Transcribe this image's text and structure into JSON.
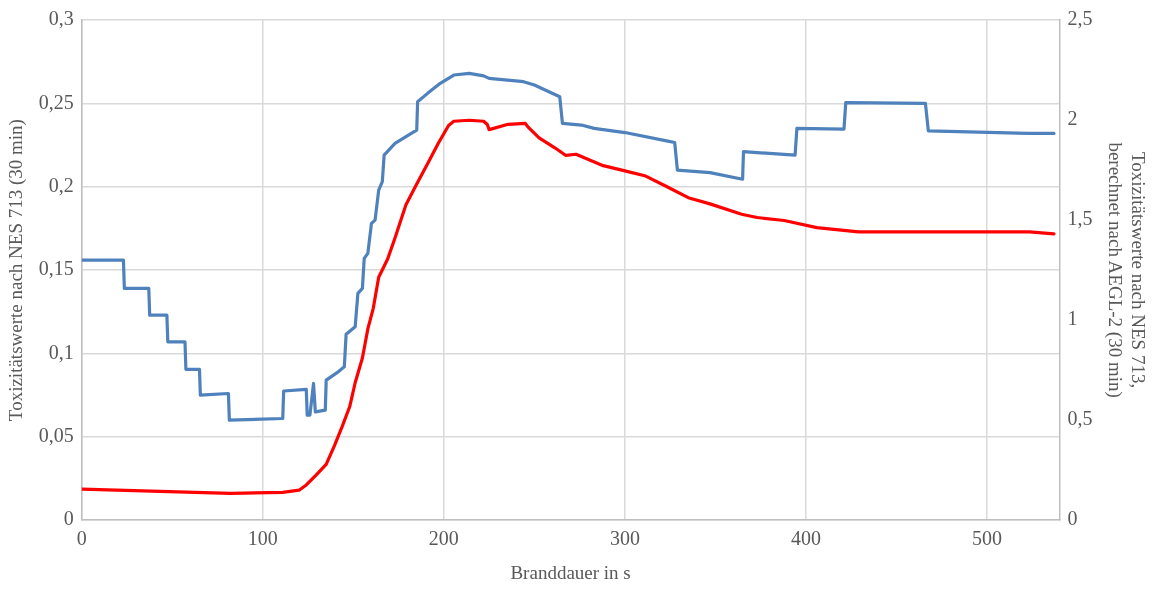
{
  "chart_data": {
    "type": "line",
    "xlabel": "Branddauer in s",
    "ylabel": "Toxizitätswerte nach NES 713 (30 min)",
    "y2label": "Toxizitätswerte nach NES 713, berechnet nach AEGL-2 (30 min)",
    "xlim": [
      0,
      540
    ],
    "xticks": [
      0,
      100,
      200,
      300,
      400,
      500
    ],
    "ylim": [
      0,
      0.3
    ],
    "yticks": [
      0,
      {
        "value": 0.05,
        "label": "0,05"
      },
      {
        "value": 0.1,
        "label": "0,1"
      },
      {
        "value": 0.15,
        "label": "0,15"
      },
      {
        "value": 0.2,
        "label": "0,2"
      },
      {
        "value": 0.25,
        "label": "0,25"
      },
      {
        "value": 0.3,
        "label": "0,3"
      }
    ],
    "y2lim": [
      0,
      2.5
    ],
    "y2ticks": [
      0,
      {
        "value": 0.5,
        "label": "0,5"
      },
      1,
      {
        "value": 1.5,
        "label": "1,5"
      },
      2,
      {
        "value": 2.5,
        "label": "2,5"
      }
    ],
    "grid": true,
    "legend": false,
    "marker": "none",
    "line_style": "solid",
    "series": [
      {
        "color": "#4f81bd",
        "axis": "y",
        "x": [
          0,
          23,
          23.5,
          37,
          37.5,
          47,
          47.5,
          57,
          57.5,
          65,
          65.5,
          81,
          81.5,
          111,
          111.5,
          124,
          124.5,
          126,
          128,
          129,
          134.5,
          135,
          141,
          145,
          146,
          151,
          152.5,
          155,
          156,
          158,
          160,
          162,
          164,
          166,
          167,
          173,
          182,
          185,
          185.5,
          191,
          198,
          205.5,
          214,
          222,
          225,
          244,
          250,
          264,
          265.5,
          276,
          283,
          300,
          323,
          327.5,
          329,
          347,
          365,
          365.5,
          394,
          395,
          421,
          422,
          466,
          467.6,
          523.5,
          537
        ],
        "values": [
          0.156,
          0.156,
          0.139,
          0.139,
          0.123,
          0.123,
          0.107,
          0.107,
          0.0905,
          0.0905,
          0.075,
          0.076,
          0.06,
          0.061,
          0.0775,
          0.0785,
          0.063,
          0.063,
          0.082,
          0.065,
          0.066,
          0.084,
          0.0885,
          0.092,
          0.1115,
          0.116,
          0.136,
          0.139,
          0.157,
          0.16,
          0.178,
          0.18,
          0.198,
          0.203,
          0.219,
          0.226,
          0.232,
          0.234,
          0.251,
          0.256,
          0.262,
          0.267,
          0.268,
          0.2665,
          0.265,
          0.263,
          0.261,
          0.254,
          0.238,
          0.237,
          0.235,
          0.2325,
          0.2275,
          0.2265,
          0.21,
          0.2085,
          0.2045,
          0.221,
          0.219,
          0.235,
          0.2345,
          0.2505,
          0.25,
          0.2335,
          0.232,
          0.232
        ]
      },
      {
        "color": "#ff0000",
        "axis": "y2",
        "x": [
          0,
          82,
          111,
          120,
          124,
          129,
          135,
          139.5,
          143.7,
          148,
          151,
          155,
          158,
          161,
          164,
          169,
          173,
          179,
          185,
          191,
          197,
          202.6,
          205.5,
          214,
          222,
          224,
          225,
          235,
          245,
          246.7,
          252.6,
          261.5,
          267.4,
          273,
          288,
          300,
          311.5,
          323,
          335,
          347,
          364.5,
          373,
          388,
          406,
          429,
          465,
          523.5,
          537
        ],
        "values": [
          0.155,
          0.134,
          0.139,
          0.15,
          0.176,
          0.222,
          0.279,
          0.372,
          0.465,
          0.568,
          0.687,
          0.811,
          0.956,
          1.059,
          1.214,
          1.307,
          1.41,
          1.575,
          1.68,
          1.782,
          1.885,
          1.973,
          1.994,
          1.999,
          1.994,
          1.978,
          1.952,
          1.978,
          1.983,
          1.963,
          1.911,
          1.86,
          1.823,
          1.829,
          1.772,
          1.746,
          1.72,
          1.668,
          1.612,
          1.581,
          1.529,
          1.513,
          1.498,
          1.462,
          1.441,
          1.441,
          1.441,
          1.431
        ]
      }
    ]
  }
}
